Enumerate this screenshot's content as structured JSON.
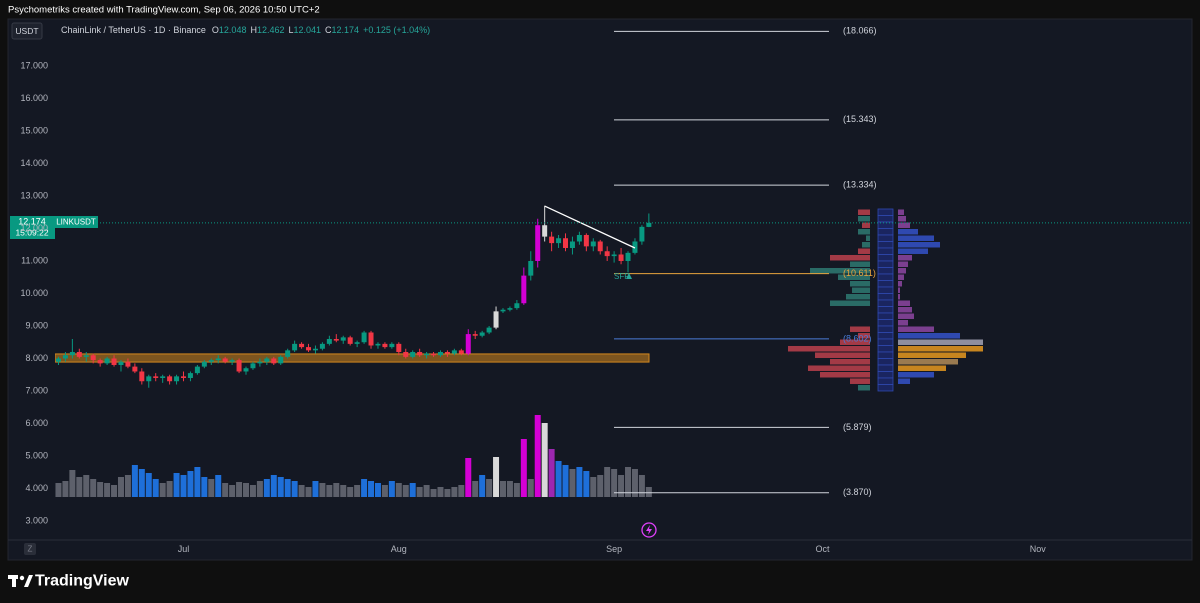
{
  "top_bar": "Psychometriks created with TradingView.com, Sep 06, 2026 10:50 UTC+2",
  "footer_logo": "TradingView",
  "chart_data": {
    "type": "candlestick",
    "currency_button": "USDT",
    "symbol": "ChainLink / TetherUS · 1D · Binance",
    "ohlc_labels": [
      "O",
      "H",
      "L",
      "C"
    ],
    "change_label": "+0.125 (+1.04%)",
    "symbol_tag": "LINKUSDT",
    "countdown": "15:09:22",
    "annotation": "SFP",
    "time_zone_button": "Z",
    "open": [
      7.9,
      8.0,
      8.1,
      8.2,
      8.05,
      8.1,
      7.95,
      7.85,
      8.0,
      7.8,
      7.9,
      7.75,
      7.6,
      7.3,
      7.45,
      7.4,
      7.45,
      7.3,
      7.45,
      7.4,
      7.55,
      7.75,
      7.9,
      7.95,
      8.0,
      7.9,
      7.95,
      7.6,
      7.7,
      7.85,
      7.9,
      8.0,
      7.85,
      8.05,
      8.25,
      8.45,
      8.35,
      8.25,
      8.3,
      8.45,
      8.6,
      8.55,
      8.65,
      8.45,
      8.5,
      8.8,
      8.4,
      8.45,
      8.35,
      8.45,
      8.2,
      8.05,
      8.2,
      8.1,
      8.15,
      8.1,
      8.2,
      8.15,
      8.25,
      8.15,
      8.75,
      8.7,
      8.8,
      8.95,
      9.45,
      9.5,
      9.55,
      9.7,
      10.55,
      11.0,
      12.1,
      11.75,
      11.55,
      11.7,
      11.4,
      11.6,
      11.8,
      11.45,
      11.6,
      11.3,
      11.15,
      11.2,
      11.0,
      11.25,
      11.6,
      12.048
    ],
    "high": [
      8.05,
      8.2,
      8.6,
      8.3,
      8.2,
      8.15,
      8.0,
      8.05,
      8.1,
      7.95,
      8.0,
      7.85,
      7.7,
      7.5,
      7.55,
      7.5,
      7.5,
      7.5,
      7.6,
      7.6,
      7.8,
      7.95,
      8.0,
      8.1,
      8.05,
      8.0,
      8.0,
      7.75,
      7.9,
      8.0,
      8.05,
      8.05,
      8.1,
      8.3,
      8.55,
      8.5,
      8.45,
      8.4,
      8.5,
      8.7,
      8.75,
      8.7,
      8.7,
      8.55,
      8.85,
      8.85,
      8.5,
      8.5,
      8.5,
      8.5,
      8.3,
      8.25,
      8.3,
      8.2,
      8.2,
      8.25,
      8.25,
      8.3,
      8.3,
      8.9,
      8.85,
      8.85,
      9.0,
      9.6,
      9.55,
      9.6,
      9.8,
      10.8,
      11.3,
      12.3,
      12.7,
      11.9,
      11.8,
      11.85,
      11.75,
      11.9,
      11.85,
      11.7,
      11.65,
      11.45,
      11.3,
      11.4,
      11.3,
      11.7,
      12.1,
      12.462
    ],
    "low": [
      7.8,
      7.9,
      8.0,
      8.0,
      7.9,
      7.85,
      7.75,
      7.8,
      7.75,
      7.6,
      7.7,
      7.55,
      7.2,
      7.1,
      7.3,
      7.25,
      7.2,
      7.2,
      7.3,
      7.3,
      7.5,
      7.7,
      7.8,
      7.85,
      7.85,
      7.8,
      7.55,
      7.5,
      7.65,
      7.75,
      7.8,
      7.8,
      7.8,
      8.0,
      8.2,
      8.3,
      8.2,
      8.15,
      8.25,
      8.4,
      8.5,
      8.45,
      8.4,
      8.35,
      8.45,
      8.3,
      8.3,
      8.3,
      8.3,
      8.1,
      8.0,
      8.0,
      8.05,
      8.0,
      8.05,
      8.05,
      8.05,
      8.1,
      8.1,
      8.1,
      8.6,
      8.65,
      8.75,
      8.9,
      9.4,
      9.45,
      9.5,
      9.65,
      10.4,
      10.8,
      11.6,
      11.3,
      11.4,
      11.3,
      11.2,
      11.5,
      11.3,
      11.3,
      11.2,
      11.0,
      10.95,
      10.9,
      10.65,
      11.2,
      11.5,
      12.041
    ],
    "close": [
      8.0,
      8.1,
      8.2,
      8.05,
      8.1,
      7.95,
      7.85,
      8.0,
      7.8,
      7.9,
      7.75,
      7.6,
      7.3,
      7.45,
      7.4,
      7.45,
      7.3,
      7.45,
      7.4,
      7.55,
      7.75,
      7.9,
      7.95,
      8.0,
      7.9,
      7.95,
      7.6,
      7.7,
      7.85,
      7.9,
      8.0,
      7.85,
      8.05,
      8.25,
      8.45,
      8.35,
      8.25,
      8.3,
      8.45,
      8.6,
      8.55,
      8.65,
      8.45,
      8.5,
      8.8,
      8.4,
      8.45,
      8.35,
      8.45,
      8.2,
      8.05,
      8.2,
      8.1,
      8.15,
      8.1,
      8.2,
      8.15,
      8.25,
      8.15,
      8.75,
      8.7,
      8.8,
      8.95,
      9.45,
      9.5,
      9.55,
      9.7,
      10.55,
      11.0,
      12.1,
      11.75,
      11.55,
      11.7,
      11.4,
      11.6,
      11.8,
      11.45,
      11.6,
      11.3,
      11.15,
      11.2,
      11.0,
      11.25,
      11.6,
      12.05,
      12.174
    ],
    "up_color": "#089981",
    "down_color": "#f23645",
    "volume": [
      14,
      16,
      27,
      20,
      22,
      18,
      15,
      14,
      12,
      20,
      22,
      32,
      28,
      24,
      18,
      14,
      16,
      24,
      22,
      26,
      30,
      20,
      18,
      22,
      14,
      12,
      15,
      14,
      12,
      16,
      18,
      22,
      20,
      18,
      16,
      12,
      10,
      16,
      14,
      12,
      14,
      12,
      10,
      12,
      18,
      16,
      14,
      12,
      16,
      14,
      12,
      14,
      10,
      12,
      8,
      10,
      8,
      10,
      12,
      39,
      16,
      22,
      18,
      40,
      16,
      16,
      14,
      58,
      18,
      82,
      74,
      48,
      36,
      32,
      28,
      30,
      26,
      20,
      22,
      30,
      28,
      22,
      30,
      28,
      22,
      10
    ],
    "volume_colors": [
      "#5d606b",
      "#5d606b",
      "#5d606b",
      "#5d606b",
      "#5d606b",
      "#5d606b",
      "#5d606b",
      "#5d606b",
      "#5d606b",
      "#5d606b",
      "#5d606b",
      "#1e6fd9",
      "#1e6fd9",
      "#1e6fd9",
      "#1e6fd9",
      "#5d606b",
      "#5d606b",
      "#1e6fd9",
      "#1e6fd9",
      "#1e6fd9",
      "#1e6fd9",
      "#1e6fd9",
      "#5d606b",
      "#1e6fd9",
      "#5d606b",
      "#5d606b",
      "#5d606b",
      "#5d606b",
      "#5d606b",
      "#5d606b",
      "#1e6fd9",
      "#1e6fd9",
      "#1e6fd9",
      "#1e6fd9",
      "#1e6fd9",
      "#5d606b",
      "#5d606b",
      "#1e6fd9",
      "#5d606b",
      "#5d606b",
      "#5d606b",
      "#5d606b",
      "#5d606b",
      "#5d606b",
      "#1e6fd9",
      "#1e6fd9",
      "#1e6fd9",
      "#5d606b",
      "#1e6fd9",
      "#5d606b",
      "#5d606b",
      "#1e6fd9",
      "#5d606b",
      "#5d606b",
      "#5d606b",
      "#5d606b",
      "#5d606b",
      "#5d606b",
      "#5d606b",
      "#d400d4",
      "#5d606b",
      "#1e6fd9",
      "#5d606b",
      "#d9d9d9",
      "#5d606b",
      "#5d606b",
      "#5d606b",
      "#d400d4",
      "#5d606b",
      "#d400d4",
      "#d9d9d9",
      "#9c27b0",
      "#1e6fd9",
      "#1e6fd9",
      "#5d606b",
      "#1e6fd9",
      "#1e6fd9",
      "#5d606b",
      "#5d606b",
      "#5d606b",
      "#5d606b",
      "#5d606b",
      "#5d606b",
      "#5d606b",
      "#5d606b",
      "#5d606b"
    ],
    "highlight_colors": [
      "#d400d4",
      "#d9d9d9"
    ],
    "xlim": [
      -0.5,
      163.2
    ],
    "xticks": [
      {
        "value": 18,
        "label": "Jul"
      },
      {
        "value": 49,
        "label": "Aug"
      },
      {
        "value": 80,
        "label": "Sep"
      },
      {
        "value": 110,
        "label": "Oct"
      },
      {
        "value": 141,
        "label": "Nov"
      }
    ],
    "ylim": [
      2.415,
      18.415
    ],
    "yticks": [
      {
        "value": 3,
        "label": "3.000"
      },
      {
        "value": 4,
        "label": "4.000"
      },
      {
        "value": 5,
        "label": "5.000"
      },
      {
        "value": 6,
        "label": "6.000"
      },
      {
        "value": 7,
        "label": "7.000"
      },
      {
        "value": 8,
        "label": "8.000"
      },
      {
        "value": 9,
        "label": "9.000"
      },
      {
        "value": 10,
        "label": "10.000"
      },
      {
        "value": 11,
        "label": "11.000"
      },
      {
        "value": 12,
        "label": "12.000"
      },
      {
        "value": 13,
        "label": "13.000"
      },
      {
        "value": 14,
        "label": "14.000"
      },
      {
        "value": 15,
        "label": "15.000"
      },
      {
        "value": 16,
        "label": "16.000"
      },
      {
        "value": 17,
        "label": "17.000"
      }
    ],
    "levels": [
      {
        "value": 18.066,
        "label": "(18.066)",
        "color": "#d1d4dc"
      },
      {
        "value": 15.343,
        "label": "(15.343)",
        "color": "#d1d4dc"
      },
      {
        "value": 13.334,
        "label": "(13.334)",
        "color": "#d1d4dc"
      },
      {
        "value": 10.611,
        "label": "(10.611)",
        "color": "#e8a33d"
      },
      {
        "value": 8.602,
        "label": "(8.602)",
        "color": "#4a7bd8"
      },
      {
        "value": 5.879,
        "label": "(5.879)",
        "color": "#d1d4dc"
      },
      {
        "value": 3.87,
        "label": "(3.870)",
        "color": "#d1d4dc"
      }
    ],
    "zone": {
      "low": 7.89,
      "high": 8.14,
      "color": "#d4881e"
    },
    "trendline": {
      "x": [
        70,
        83
      ],
      "y": [
        12.69,
        11.4
      ],
      "color": "#ffffff"
    },
    "volume_profile": {
      "bins": [
        12.6,
        12.4,
        12.2,
        12.0,
        11.8,
        11.6,
        11.4,
        11.2,
        11.0,
        10.8,
        10.6,
        10.4,
        10.2,
        10.0,
        9.8,
        9.6,
        9.4,
        9.2,
        9.0,
        8.8,
        8.6,
        8.4,
        8.2,
        8.0,
        7.8,
        7.6,
        7.4,
        7.2,
        7.0
      ],
      "left": [
        12,
        12,
        8,
        12,
        4,
        8,
        12,
        40,
        20,
        60,
        32,
        20,
        18,
        24,
        40,
        0,
        0,
        0,
        20,
        12,
        30,
        82,
        55,
        40,
        62,
        50,
        20,
        12
      ],
      "left_colors": [
        "#a33a46",
        "#2a6b66",
        "#a33a46",
        "#2a6b66",
        "#2a6b66",
        "#2a6b66",
        "#a33a46",
        "#a33a46",
        "#2a6b66",
        "#2a6b66",
        "#2a6b66",
        "#2a6b66",
        "#2a6b66",
        "#2a6b66",
        "#2a6b66",
        "#2a6b66",
        "#2a6b66",
        "#2a6b66",
        "#a33a46",
        "#a33a46",
        "#a33a46",
        "#a33a46",
        "#a33a46",
        "#a33a46",
        "#a33a46",
        "#a33a46",
        "#a33a46",
        "#2a6b66"
      ],
      "right": [
        6,
        8,
        12,
        20,
        36,
        42,
        30,
        14,
        10,
        8,
        6,
        4,
        2,
        2,
        12,
        14,
        16,
        10,
        36,
        62,
        85,
        85,
        68,
        60,
        48,
        36,
        12,
        0
      ],
      "right_colors": [
        "#7b3f8f",
        "#7b3f8f",
        "#7b3f8f",
        "#2f49b0",
        "#2f49b0",
        "#2f49b0",
        "#2f49b0",
        "#7b3f8f",
        "#7b3f8f",
        "#7b3f8f",
        "#7b3f8f",
        "#7b3f8f",
        "#7b3f8f",
        "#7b3f8f",
        "#7b3f8f",
        "#7b3f8f",
        "#7b3f8f",
        "#7b3f8f",
        "#7b3f8f",
        "#2f49b0",
        "#8e8e9e",
        "#c7851f",
        "#c7851f",
        "#9a7a50",
        "#c7851f",
        "#2f49b0",
        "#2f49b0",
        "#2f49b0"
      ]
    }
  }
}
